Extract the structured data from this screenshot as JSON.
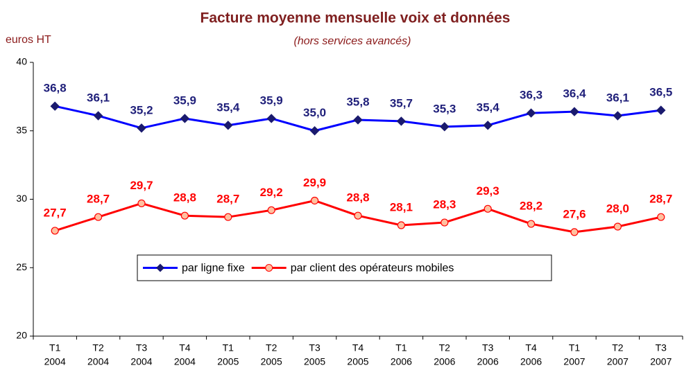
{
  "chart_data": {
    "type": "line",
    "title": "Facture moyenne mensuelle voix et données",
    "subtitle": "(hors services avancés)",
    "y_label": "euros HT",
    "categories": [
      [
        "T1",
        "2004"
      ],
      [
        "T2",
        "2004"
      ],
      [
        "T3",
        "2004"
      ],
      [
        "T4",
        "2004"
      ],
      [
        "T1",
        "2005"
      ],
      [
        "T2",
        "2005"
      ],
      [
        "T3",
        "2005"
      ],
      [
        "T4",
        "2005"
      ],
      [
        "T1",
        "2006"
      ],
      [
        "T2",
        "2006"
      ],
      [
        "T3",
        "2006"
      ],
      [
        "T4",
        "2006"
      ],
      [
        "T1",
        "2007"
      ],
      [
        "T2",
        "2007"
      ],
      [
        "T3",
        "2007"
      ]
    ],
    "series": [
      {
        "name": "par ligne fixe",
        "color": "#0000ff",
        "marker_color": "#1a1a6e",
        "label_color": "#1f1f7a",
        "marker": "diamond",
        "values": [
          36.8,
          36.1,
          35.2,
          35.9,
          35.4,
          35.9,
          35.0,
          35.8,
          35.7,
          35.3,
          35.4,
          36.3,
          36.4,
          36.1,
          36.5
        ],
        "value_labels": [
          "36,8",
          "36,1",
          "35,2",
          "35,9",
          "35,4",
          "35,9",
          "35,0",
          "35,8",
          "35,7",
          "35,3",
          "35,4",
          "36,3",
          "36,4",
          "36,1",
          "36,5"
        ]
      },
      {
        "name": "par client des opérateurs mobiles",
        "color": "#ff0000",
        "marker_color": "#ffc0a0",
        "label_color": "#ff0000",
        "marker": "circle",
        "values": [
          27.7,
          28.7,
          29.7,
          28.8,
          28.7,
          29.2,
          29.9,
          28.8,
          28.1,
          28.3,
          29.3,
          28.2,
          27.6,
          28.0,
          28.7
        ],
        "value_labels": [
          "27,7",
          "28,7",
          "29,7",
          "28,8",
          "28,7",
          "29,2",
          "29,9",
          "28,8",
          "28,1",
          "28,3",
          "29,3",
          "28,2",
          "27,6",
          "28,0",
          "28,7"
        ]
      }
    ],
    "ylim": [
      20,
      40
    ],
    "yticks": [
      20,
      25,
      30,
      35,
      40
    ],
    "grid": false,
    "legend": "center"
  }
}
